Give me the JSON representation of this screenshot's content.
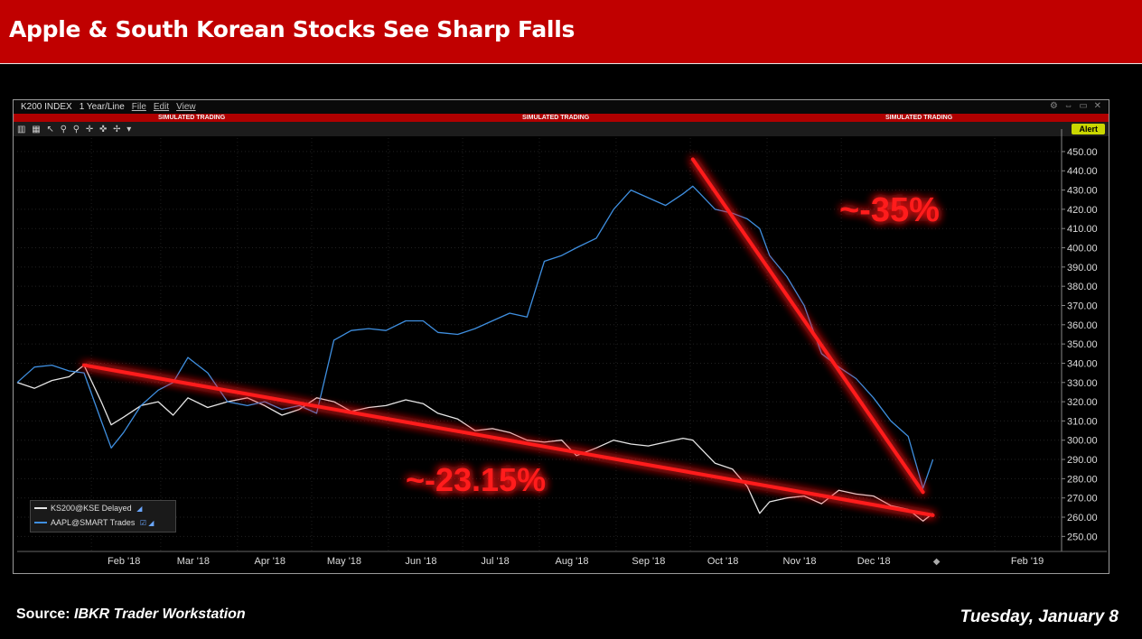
{
  "slide": {
    "title": "Apple & South Korean Stocks See Sharp Falls",
    "source_label": "Source:",
    "source_name": "IBKR Trader Workstation",
    "date": "Tuesday, January 8"
  },
  "window": {
    "ticker": "K200 INDEX",
    "period": "1 Year/Line",
    "menus": [
      "File",
      "Edit",
      "View"
    ],
    "sim_banner": "SIMULATED TRADING",
    "alert_label": "Alert"
  },
  "legend": [
    {
      "label": "KS200@KSE Delayed",
      "color": "#e6e6e6"
    },
    {
      "label": "AAPL@SMART Trades",
      "color": "#3f8fe0"
    }
  ],
  "annotations": {
    "left_pct": "~-23.15%",
    "right_pct": "~-35%",
    "color": "#ff1a1a"
  },
  "chart_data": {
    "type": "line",
    "ylim": [
      245,
      457
    ],
    "yticks": [
      "450.00",
      "440.00",
      "430.00",
      "420.00",
      "410.00",
      "400.00",
      "390.00",
      "380.00",
      "370.00",
      "360.00",
      "350.00",
      "340.00",
      "330.00",
      "320.00",
      "310.00",
      "300.00",
      "290.00",
      "280.00",
      "270.00",
      "260.00",
      "250.00"
    ],
    "xticks": [
      "Feb '18",
      "Mar '18",
      "Apr '18",
      "May '18",
      "Jun '18",
      "Jul '18",
      "Aug '18",
      "Sep '18",
      "Oct '18",
      "Nov '18",
      "Dec '18",
      "Feb '19"
    ],
    "series": [
      {
        "name": "KS200@KSE Delayed",
        "color": "#e6e6e6",
        "points": [
          [
            "2018-01-02",
            330
          ],
          [
            "2018-01-09",
            327
          ],
          [
            "2018-01-16",
            331
          ],
          [
            "2018-01-23",
            333
          ],
          [
            "2018-01-29",
            339
          ],
          [
            "2018-02-05",
            320
          ],
          [
            "2018-02-09",
            308
          ],
          [
            "2018-02-14",
            312
          ],
          [
            "2018-02-21",
            318
          ],
          [
            "2018-02-28",
            320
          ],
          [
            "2018-03-06",
            313
          ],
          [
            "2018-03-12",
            322
          ],
          [
            "2018-03-20",
            317
          ],
          [
            "2018-03-28",
            320
          ],
          [
            "2018-04-05",
            322
          ],
          [
            "2018-04-12",
            318
          ],
          [
            "2018-04-19",
            313
          ],
          [
            "2018-04-26",
            316
          ],
          [
            "2018-05-03",
            322
          ],
          [
            "2018-05-10",
            320
          ],
          [
            "2018-05-17",
            315
          ],
          [
            "2018-05-24",
            317
          ],
          [
            "2018-05-31",
            318
          ],
          [
            "2018-06-08",
            321
          ],
          [
            "2018-06-15",
            319
          ],
          [
            "2018-06-21",
            314
          ],
          [
            "2018-06-29",
            311
          ],
          [
            "2018-07-06",
            305
          ],
          [
            "2018-07-13",
            306
          ],
          [
            "2018-07-20",
            304
          ],
          [
            "2018-07-27",
            300
          ],
          [
            "2018-08-03",
            299
          ],
          [
            "2018-08-10",
            300
          ],
          [
            "2018-08-16",
            292
          ],
          [
            "2018-08-24",
            296
          ],
          [
            "2018-08-31",
            300
          ],
          [
            "2018-09-07",
            298
          ],
          [
            "2018-09-14",
            297
          ],
          [
            "2018-09-21",
            299
          ],
          [
            "2018-09-28",
            301
          ],
          [
            "2018-10-02",
            300
          ],
          [
            "2018-10-05",
            296
          ],
          [
            "2018-10-11",
            288
          ],
          [
            "2018-10-18",
            285
          ],
          [
            "2018-10-24",
            276
          ],
          [
            "2018-10-29",
            262
          ],
          [
            "2018-11-02",
            268
          ],
          [
            "2018-11-09",
            270
          ],
          [
            "2018-11-16",
            271
          ],
          [
            "2018-11-23",
            267
          ],
          [
            "2018-11-30",
            274
          ],
          [
            "2018-12-07",
            272
          ],
          [
            "2018-12-14",
            271
          ],
          [
            "2018-12-21",
            266
          ],
          [
            "2018-12-28",
            264
          ],
          [
            "2019-01-03",
            258
          ],
          [
            "2019-01-07",
            262
          ]
        ]
      },
      {
        "name": "AAPL@SMART Trades",
        "color": "#3f8fe0",
        "points": [
          [
            "2018-01-02",
            330
          ],
          [
            "2018-01-09",
            338
          ],
          [
            "2018-01-16",
            339
          ],
          [
            "2018-01-23",
            336
          ],
          [
            "2018-01-29",
            335
          ],
          [
            "2018-02-05",
            310
          ],
          [
            "2018-02-09",
            296
          ],
          [
            "2018-02-14",
            304
          ],
          [
            "2018-02-21",
            318
          ],
          [
            "2018-02-28",
            326
          ],
          [
            "2018-03-06",
            330
          ],
          [
            "2018-03-12",
            343
          ],
          [
            "2018-03-20",
            335
          ],
          [
            "2018-03-28",
            320
          ],
          [
            "2018-04-05",
            318
          ],
          [
            "2018-04-12",
            320
          ],
          [
            "2018-04-19",
            316
          ],
          [
            "2018-04-26",
            318
          ],
          [
            "2018-05-03",
            314
          ],
          [
            "2018-05-10",
            352
          ],
          [
            "2018-05-17",
            357
          ],
          [
            "2018-05-24",
            358
          ],
          [
            "2018-05-31",
            357
          ],
          [
            "2018-06-08",
            362
          ],
          [
            "2018-06-15",
            362
          ],
          [
            "2018-06-21",
            356
          ],
          [
            "2018-06-29",
            355
          ],
          [
            "2018-07-06",
            358
          ],
          [
            "2018-07-13",
            362
          ],
          [
            "2018-07-20",
            366
          ],
          [
            "2018-07-27",
            364
          ],
          [
            "2018-08-03",
            393
          ],
          [
            "2018-08-10",
            396
          ],
          [
            "2018-08-16",
            400
          ],
          [
            "2018-08-24",
            405
          ],
          [
            "2018-08-31",
            420
          ],
          [
            "2018-09-07",
            430
          ],
          [
            "2018-09-14",
            426
          ],
          [
            "2018-09-21",
            422
          ],
          [
            "2018-09-28",
            428
          ],
          [
            "2018-10-02",
            432
          ],
          [
            "2018-10-05",
            428
          ],
          [
            "2018-10-11",
            420
          ],
          [
            "2018-10-18",
            418
          ],
          [
            "2018-10-24",
            415
          ],
          [
            "2018-10-29",
            410
          ],
          [
            "2018-11-02",
            396
          ],
          [
            "2018-11-09",
            385
          ],
          [
            "2018-11-16",
            370
          ],
          [
            "2018-11-23",
            345
          ],
          [
            "2018-11-30",
            338
          ],
          [
            "2018-12-07",
            332
          ],
          [
            "2018-12-14",
            322
          ],
          [
            "2018-12-21",
            310
          ],
          [
            "2018-12-28",
            302
          ],
          [
            "2019-01-03",
            275
          ],
          [
            "2019-01-07",
            290
          ]
        ]
      }
    ]
  }
}
